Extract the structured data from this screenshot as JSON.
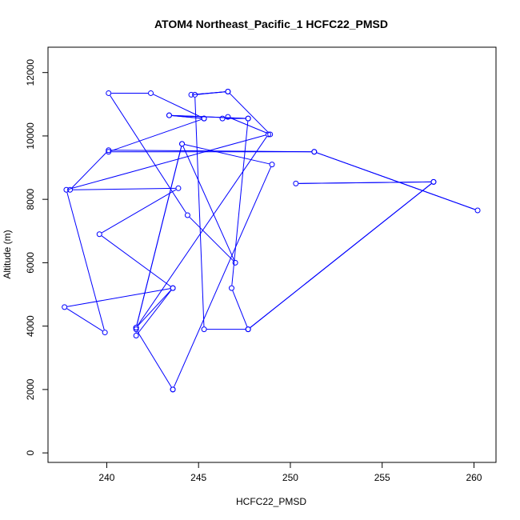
{
  "chart_data": {
    "type": "line",
    "title": "ATOM4 Northeast_Pacific_1 HCFC22_PMSD",
    "xlabel": "HCFC22_PMSD",
    "ylabel": "Altitude (m)",
    "xlim": [
      236.8,
      261.2
    ],
    "ylim": [
      -300,
      12800
    ],
    "xticks": [
      240,
      245,
      250,
      255,
      260
    ],
    "yticks": [
      0,
      2000,
      4000,
      6000,
      8000,
      10000,
      12000
    ],
    "grid": false,
    "marker": "open-circle",
    "color": "#0000ff",
    "series": [
      {
        "x": [
          243.6,
          241.6,
          241.6,
          243.6,
          237.7,
          239.9,
          237.8,
          248.8,
          241.6,
          244.1,
          241.6,
          243.6,
          239.6,
          243.9,
          238.0,
          240.1,
          251.3,
          260.2,
          251.3,
          240.1,
          245.3,
          243.4,
          247.7,
          246.8,
          247.7,
          257.8,
          250.3,
          257.8,
          247.7,
          245.3,
          244.8,
          246.6,
          244.6,
          246.6,
          248.9,
          246.6,
          246.3,
          247.7,
          243.4,
          245.3,
          242.4,
          240.1,
          244.4,
          247.0,
          244.1,
          249.0,
          243.6
        ],
        "y": [
          2000,
          3900,
          3700,
          5200,
          4600,
          3800,
          8300,
          10050,
          3950,
          9750,
          3950,
          5200,
          6900,
          8350,
          8300,
          9550,
          9500,
          7650,
          9500,
          9500,
          10550,
          10650,
          10550,
          5200,
          3900,
          8550,
          8500,
          8550,
          3900,
          3900,
          11300,
          11400,
          11300,
          11400,
          10050,
          10600,
          10550,
          10550,
          10650,
          10550,
          11350,
          11350,
          7500,
          6000,
          9750,
          9100,
          2000
        ]
      }
    ]
  }
}
